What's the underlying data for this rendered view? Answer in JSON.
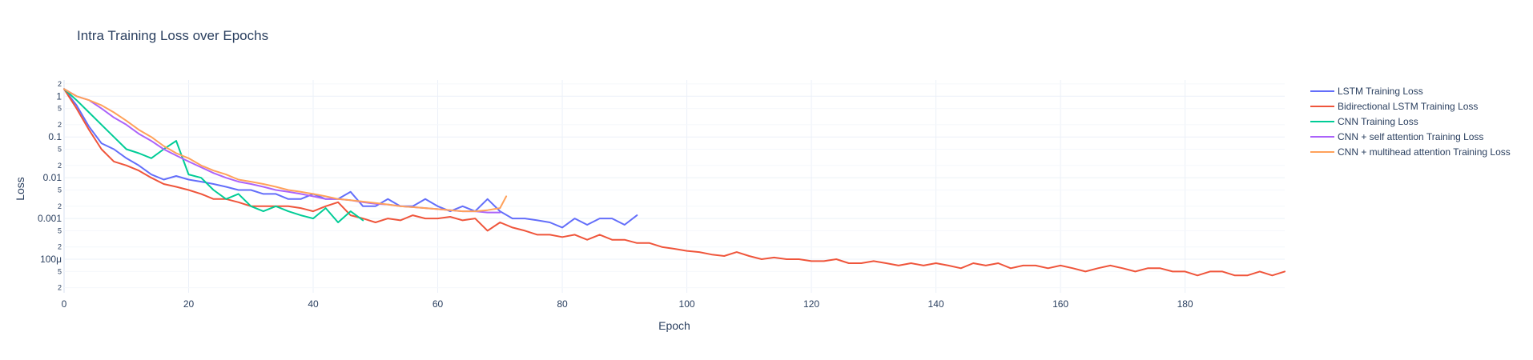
{
  "chart_data": {
    "type": "line",
    "title": "Intra Training Loss over Epochs",
    "xlabel": "Epoch",
    "ylabel": "Loss",
    "xlim": [
      0,
      196
    ],
    "ylim": [
      1.5e-05,
      2.5
    ],
    "yscale": "log",
    "grid": true,
    "legend_position": "right",
    "x_ticks": [
      0,
      20,
      40,
      60,
      80,
      100,
      120,
      140,
      160,
      180
    ],
    "y_major_ticks": [
      {
        "value": 1,
        "label": "1"
      },
      {
        "value": 0.1,
        "label": "0.1"
      },
      {
        "value": 0.01,
        "label": "0.01"
      },
      {
        "value": 0.001,
        "label": "0.001"
      },
      {
        "value": 0.0001,
        "label": "100μ"
      }
    ],
    "y_minor_ticks": [
      {
        "value": 2,
        "label": "2"
      },
      {
        "value": 0.5,
        "label": "5"
      },
      {
        "value": 0.2,
        "label": "2"
      },
      {
        "value": 0.05,
        "label": "5"
      },
      {
        "value": 0.02,
        "label": "2"
      },
      {
        "value": 0.005,
        "label": "5"
      },
      {
        "value": 0.002,
        "label": "2"
      },
      {
        "value": 0.0005,
        "label": "5"
      },
      {
        "value": 0.0002,
        "label": "2"
      },
      {
        "value": 5e-05,
        "label": "5"
      },
      {
        "value": 2e-05,
        "label": "2"
      }
    ],
    "series": [
      {
        "name": "LSTM Training Loss",
        "color": "#636efa",
        "x": [
          0,
          2,
          4,
          6,
          8,
          10,
          12,
          14,
          16,
          18,
          20,
          22,
          24,
          26,
          28,
          30,
          32,
          34,
          36,
          38,
          40,
          42,
          44,
          46,
          48,
          50,
          52,
          54,
          56,
          58,
          60,
          62,
          64,
          66,
          68,
          70,
          72,
          74,
          76,
          78,
          80,
          82,
          84,
          86,
          88,
          90,
          92
        ],
        "y": [
          1.5,
          0.6,
          0.18,
          0.07,
          0.05,
          0.03,
          0.02,
          0.012,
          0.009,
          0.011,
          0.009,
          0.008,
          0.007,
          0.006,
          0.005,
          0.005,
          0.004,
          0.004,
          0.003,
          0.003,
          0.004,
          0.003,
          0.003,
          0.0045,
          0.002,
          0.002,
          0.003,
          0.002,
          0.002,
          0.003,
          0.002,
          0.0015,
          0.002,
          0.0015,
          0.003,
          0.0015,
          0.001,
          0.001,
          0.0009,
          0.0008,
          0.0006,
          0.001,
          0.0007,
          0.001,
          0.001,
          0.0007,
          0.0012
        ]
      },
      {
        "name": "Bidirectional LSTM Training Loss",
        "color": "#ef553b",
        "x": [
          0,
          2,
          4,
          6,
          8,
          10,
          12,
          14,
          16,
          18,
          20,
          22,
          24,
          26,
          28,
          30,
          32,
          34,
          36,
          38,
          40,
          42,
          44,
          46,
          48,
          50,
          52,
          54,
          56,
          58,
          60,
          62,
          64,
          66,
          68,
          70,
          72,
          74,
          76,
          78,
          80,
          82,
          84,
          86,
          88,
          90,
          92,
          94,
          96,
          98,
          100,
          102,
          104,
          106,
          108,
          110,
          112,
          114,
          116,
          118,
          120,
          122,
          124,
          126,
          128,
          130,
          132,
          134,
          136,
          138,
          140,
          142,
          144,
          146,
          148,
          150,
          152,
          154,
          156,
          158,
          160,
          162,
          164,
          166,
          168,
          170,
          172,
          174,
          176,
          178,
          180,
          182,
          184,
          186,
          188,
          190,
          192,
          194,
          196
        ],
        "y": [
          1.5,
          0.5,
          0.15,
          0.05,
          0.025,
          0.02,
          0.015,
          0.01,
          0.007,
          0.006,
          0.005,
          0.004,
          0.003,
          0.003,
          0.0025,
          0.002,
          0.002,
          0.002,
          0.002,
          0.0018,
          0.0015,
          0.002,
          0.0025,
          0.0012,
          0.001,
          0.0008,
          0.001,
          0.0009,
          0.0012,
          0.001,
          0.001,
          0.0011,
          0.0009,
          0.001,
          0.0005,
          0.0008,
          0.0006,
          0.0005,
          0.0004,
          0.0004,
          0.00035,
          0.0004,
          0.0003,
          0.0004,
          0.0003,
          0.0003,
          0.00025,
          0.00025,
          0.0002,
          0.00018,
          0.00016,
          0.00015,
          0.00013,
          0.00012,
          0.00015,
          0.00012,
          0.0001,
          0.00011,
          0.0001,
          0.0001,
          9e-05,
          9e-05,
          0.0001,
          8e-05,
          8e-05,
          9e-05,
          8e-05,
          7e-05,
          8e-05,
          7e-05,
          8e-05,
          7e-05,
          6e-05,
          8e-05,
          7e-05,
          8e-05,
          6e-05,
          7e-05,
          7e-05,
          6e-05,
          7e-05,
          6e-05,
          5e-05,
          6e-05,
          7e-05,
          6e-05,
          5e-05,
          6e-05,
          6e-05,
          5e-05,
          5e-05,
          4e-05,
          5e-05,
          5e-05,
          4e-05,
          4e-05,
          5e-05,
          4e-05,
          5e-05
        ]
      },
      {
        "name": "CNN Training Loss",
        "color": "#00cc96",
        "x": [
          0,
          2,
          4,
          6,
          8,
          10,
          12,
          14,
          16,
          18,
          20,
          22,
          24,
          26,
          28,
          30,
          32,
          34,
          36,
          38,
          40,
          42,
          44,
          46,
          48
        ],
        "y": [
          1.5,
          0.8,
          0.4,
          0.2,
          0.1,
          0.05,
          0.04,
          0.03,
          0.05,
          0.08,
          0.012,
          0.01,
          0.005,
          0.003,
          0.004,
          0.002,
          0.0015,
          0.002,
          0.0015,
          0.0012,
          0.001,
          0.0018,
          0.0008,
          0.0015,
          0.0009
        ]
      },
      {
        "name": "CNN + self attention Training Loss",
        "color": "#ab63fa",
        "x": [
          0,
          2,
          4,
          6,
          8,
          10,
          12,
          14,
          16,
          18,
          20,
          22,
          24,
          26,
          28,
          30,
          32,
          34,
          36,
          38,
          40,
          42,
          44,
          46,
          48,
          50,
          52,
          54,
          56,
          58,
          60,
          62,
          64,
          66,
          68,
          70
        ],
        "y": [
          1.5,
          1.0,
          0.8,
          0.5,
          0.3,
          0.2,
          0.12,
          0.08,
          0.05,
          0.035,
          0.025,
          0.018,
          0.013,
          0.01,
          0.008,
          0.007,
          0.006,
          0.005,
          0.0045,
          0.004,
          0.0035,
          0.003,
          0.003,
          0.0028,
          0.0025,
          0.0023,
          0.0022,
          0.002,
          0.0019,
          0.0018,
          0.0017,
          0.0016,
          0.0015,
          0.0015,
          0.0014,
          0.0014
        ]
      },
      {
        "name": "CNN + multihead attention Training Loss",
        "color": "#ffa15a",
        "x": [
          0,
          2,
          4,
          6,
          8,
          10,
          12,
          14,
          16,
          18,
          20,
          22,
          24,
          26,
          28,
          30,
          32,
          34,
          36,
          38,
          40,
          42,
          44,
          46,
          48,
          50,
          52,
          54,
          56,
          58,
          60,
          62,
          64,
          66,
          68,
          70,
          71
        ],
        "y": [
          1.5,
          1.0,
          0.8,
          0.6,
          0.4,
          0.25,
          0.15,
          0.1,
          0.06,
          0.04,
          0.03,
          0.02,
          0.015,
          0.012,
          0.009,
          0.008,
          0.007,
          0.006,
          0.005,
          0.0045,
          0.004,
          0.0035,
          0.003,
          0.0028,
          0.0026,
          0.0024,
          0.0022,
          0.002,
          0.0019,
          0.0018,
          0.0017,
          0.0016,
          0.0015,
          0.0015,
          0.0016,
          0.0018,
          0.0035
        ]
      }
    ]
  }
}
